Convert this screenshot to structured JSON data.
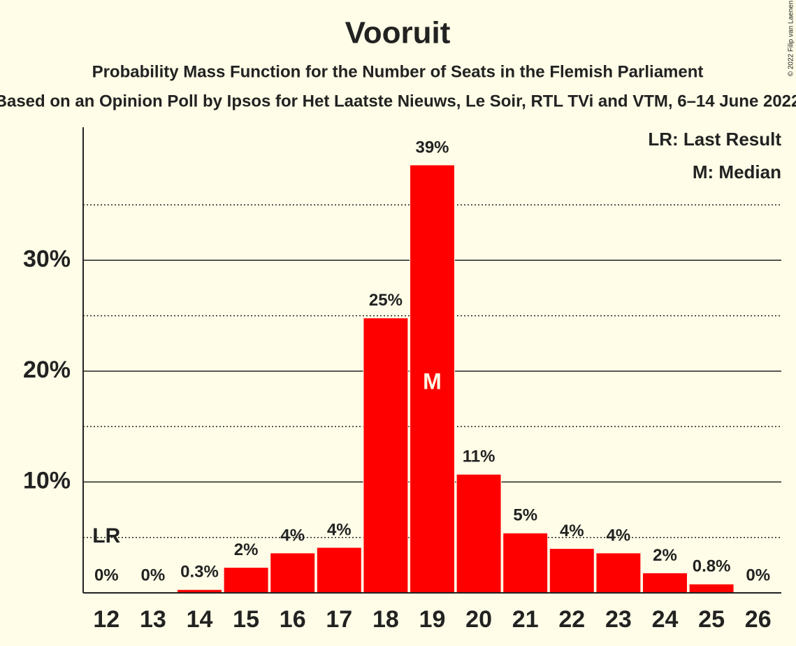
{
  "chart_data": {
    "type": "bar",
    "title": "Vooruit",
    "subtitle": "Probability Mass Function for the Number of Seats in the Flemish Parliament",
    "subtitle2": "Based on an Opinion Poll by Ipsos for Het Laatste Nieuws, Le Soir, RTL TVi and VTM, 6–14 June 2022",
    "copyright": "© 2022 Filip van Laenen",
    "categories": [
      "12",
      "13",
      "14",
      "15",
      "16",
      "17",
      "18",
      "19",
      "20",
      "21",
      "22",
      "23",
      "24",
      "25",
      "26"
    ],
    "values": [
      0,
      0,
      0.3,
      2.3,
      3.6,
      4.1,
      24.8,
      38.6,
      10.7,
      5.4,
      4.0,
      3.6,
      1.8,
      0.8,
      0
    ],
    "value_labels": [
      "0%",
      "0%",
      "0.3%",
      "2%",
      "4%",
      "4%",
      "25%",
      "39%",
      "11%",
      "5%",
      "4%",
      "4%",
      "2%",
      "0.8%",
      "0%"
    ],
    "color": "#ff0000",
    "ylim": [
      0,
      42
    ],
    "yticks": [
      {
        "value": 10,
        "label": "10%"
      },
      {
        "value": 20,
        "label": "20%"
      },
      {
        "value": 30,
        "label": "30%"
      }
    ],
    "minor_grid": [
      5,
      15,
      25,
      35
    ],
    "grid": true,
    "last_result": {
      "category": "12",
      "label": "LR"
    },
    "median": {
      "category": "19",
      "label": "M"
    },
    "legend": [
      "LR: Last Result",
      "M: Median"
    ],
    "legend_position": "top-right"
  }
}
